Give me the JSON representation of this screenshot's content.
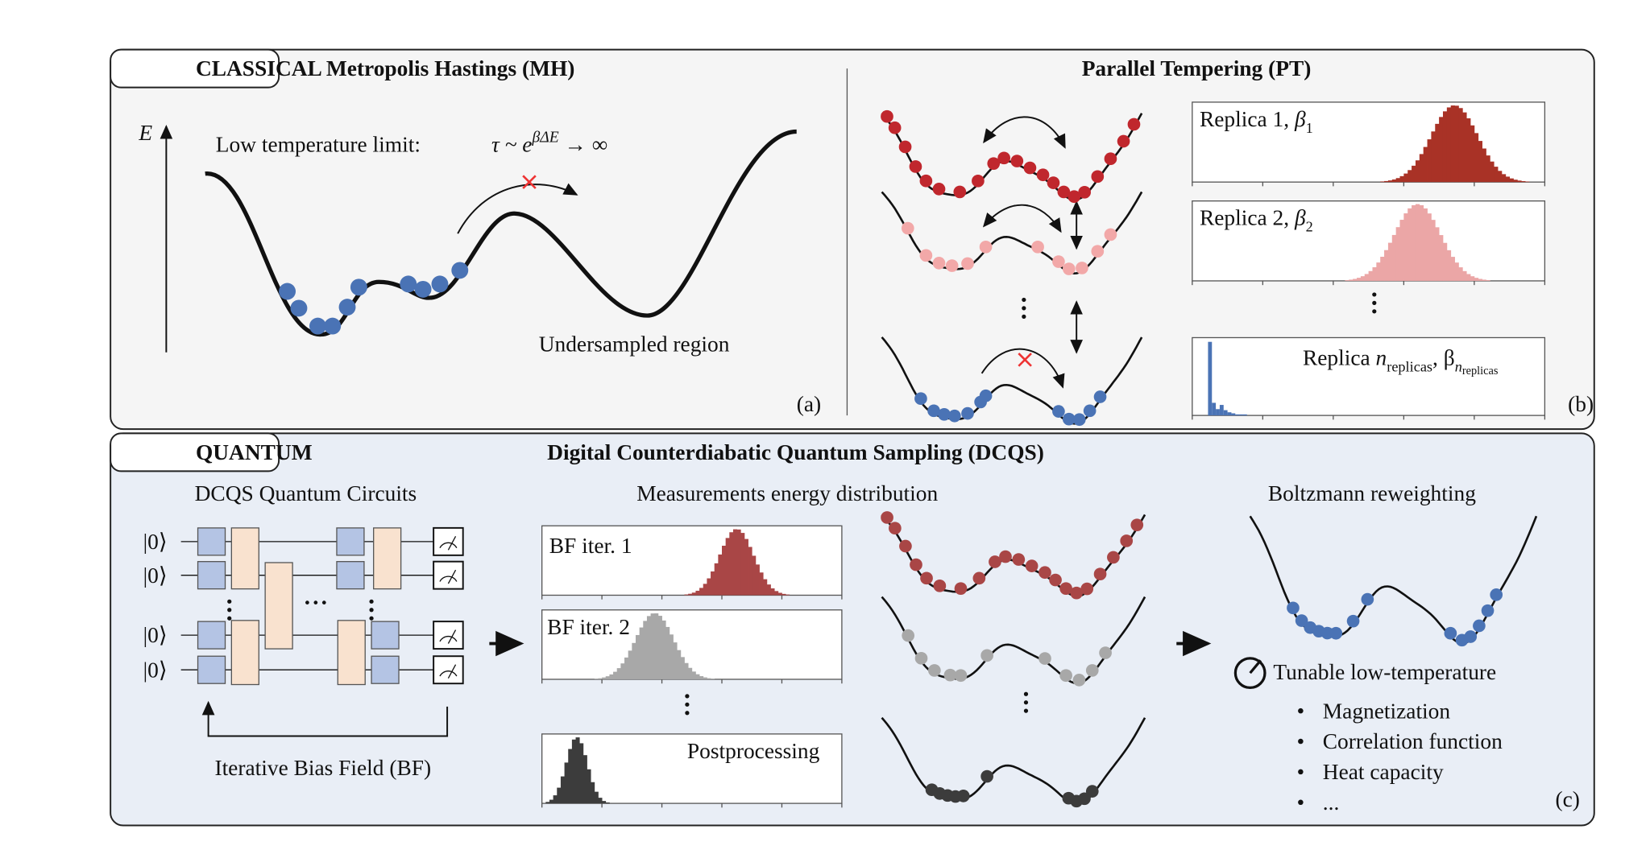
{
  "classical": {
    "tag": "CLASSICAL",
    "mh_title": "Metropolis Hastings (MH)",
    "energy_axis": "E",
    "low_temp": "Low temperature limit:",
    "formula": {
      "base": "τ ~ e",
      "exponent": "βΔE",
      "tail": " → ∞"
    },
    "undersampled": "Undersampled region",
    "panel_a": "(a)",
    "pt_title": "Parallel Tempering (PT)",
    "replicas": [
      {
        "name": "Replica 1, ",
        "beta": "β",
        "sub": "1"
      },
      {
        "name": "Replica 2, ",
        "beta": "β",
        "sub": "2"
      }
    ],
    "replica_n": {
      "prefix": "Replica ",
      "n": "n",
      "n_sub": "replicas",
      "beta": ", β",
      "beta_sub": "n",
      "beta_subsub": "replicas"
    },
    "panel_b": "(b)"
  },
  "quantum": {
    "tag": "QUANTUM",
    "title": "Digital Counterdiabatic Quantum Sampling (DCQS)",
    "circuits_title": "DCQS Quantum Circuits",
    "qubits": [
      "|0⟩",
      "|0⟩",
      "|0⟩",
      "|0⟩"
    ],
    "bias_field": "Iterative Bias Field (BF)",
    "measurements_title": "Measurements energy distribution",
    "hist_labels": [
      "BF iter. 1",
      "BF iter. 2",
      "Postprocessing"
    ],
    "reweighting_title": "Boltzmann reweighting",
    "tunable": "Tunable low-temperature",
    "observables": [
      "Magnetization",
      "Correlation function",
      "Heat capacity",
      "..."
    ],
    "panel_c": "(c)"
  }
}
